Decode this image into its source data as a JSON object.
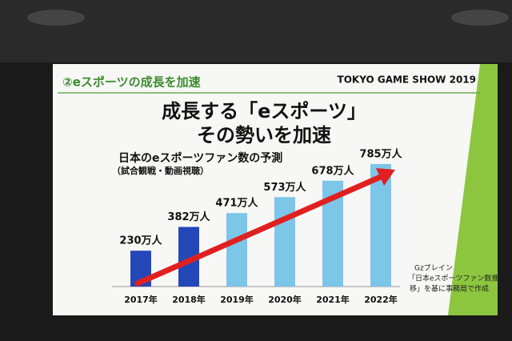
{
  "header": {
    "section": "②eスポーツの成長を加速",
    "event": "TOKYO GAME SHOW 2019"
  },
  "headline": [
    "成長する「eスポーツ」",
    "その勢いを加速"
  ],
  "chart_data": {
    "type": "bar",
    "title": "日本のeスポーツファン数の予測",
    "subtitle": "（試合観戦・動画視聴）",
    "categories": [
      "2017年",
      "2018年",
      "2019年",
      "2020年",
      "2021年",
      "2022年"
    ],
    "values": [
      230,
      382,
      471,
      573,
      678,
      785
    ],
    "value_labels": [
      "230万人",
      "382万人",
      "471万人",
      "573万人",
      "678万人",
      "785万人"
    ],
    "colors": [
      "#2447b8",
      "#2447b8",
      "#7cc6ea",
      "#7cc6ea",
      "#7cc6ea",
      "#7cc6ea"
    ]
  },
  "source": [
    "Gzブレイン",
    "「日本eスポーツファン数推",
    "移」を基に事務局で作成"
  ]
}
